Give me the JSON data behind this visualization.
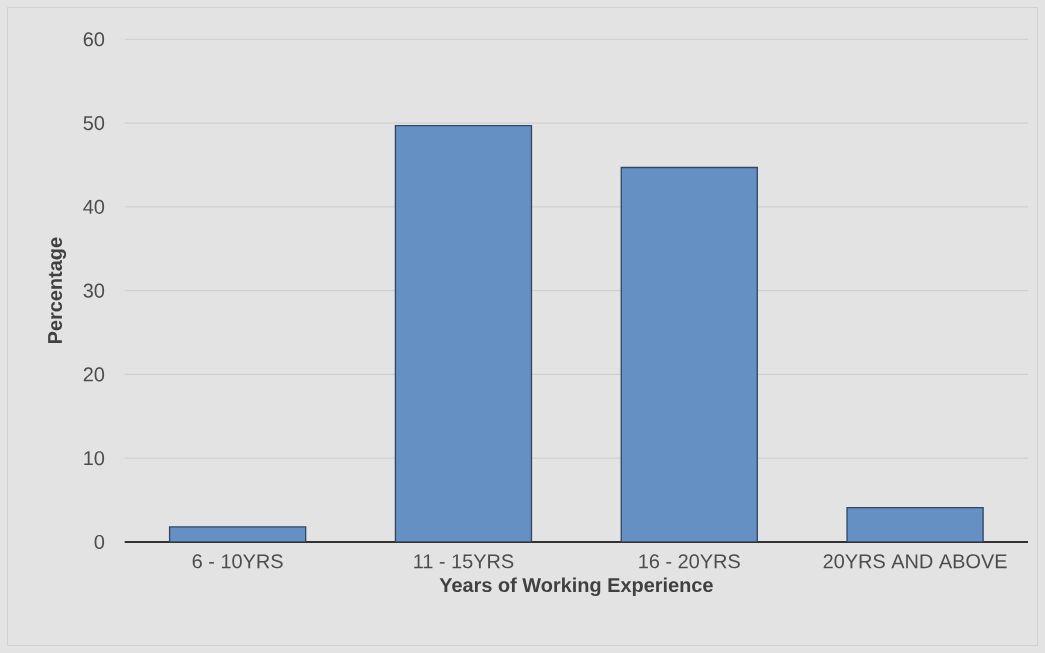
{
  "chart_data": {
    "type": "bar",
    "xlabel": "Years of Working Experience",
    "ylabel": "Percentage",
    "categories": [
      "6 - 10YRS",
      "11 - 15YRS",
      "16 - 20YRS",
      "20YRS AND ABOVE"
    ],
    "values": [
      1.8,
      49.7,
      44.7,
      4.1
    ],
    "color": "#6490c4",
    "ylim": [
      0,
      60
    ],
    "yticks": [
      0,
      10,
      20,
      30,
      40,
      50,
      60
    ],
    "grid": "y"
  }
}
